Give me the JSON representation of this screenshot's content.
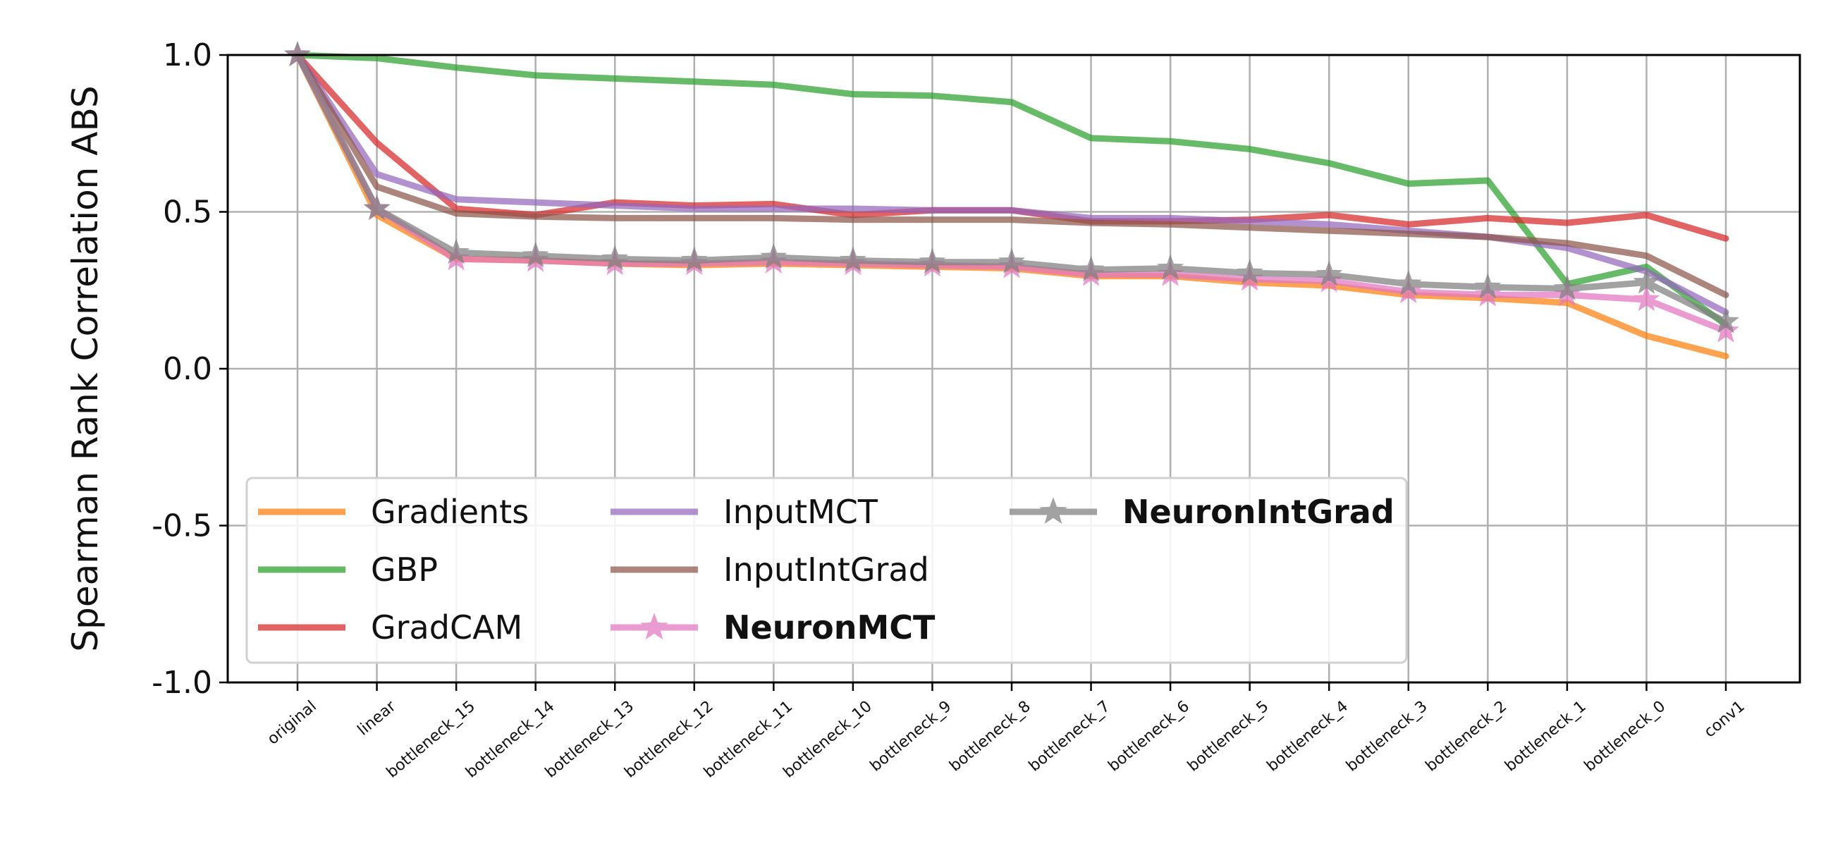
{
  "chart_data": {
    "type": "line",
    "title": "",
    "xlabel": "",
    "ylabel": "Spearman Rank Correlation ABS",
    "ylim": [
      -1.0,
      1.0
    ],
    "yticks": [
      "1.0",
      "0.5",
      "0.0",
      "-0.5",
      "-1.0"
    ],
    "grid": true,
    "legend_position": "lower-left",
    "legend_columns": 3,
    "categories": [
      "original",
      "linear",
      "bottleneck_15",
      "bottleneck_14",
      "bottleneck_13",
      "bottleneck_12",
      "bottleneck_11",
      "bottleneck_10",
      "bottleneck_9",
      "bottleneck_8",
      "bottleneck_7",
      "bottleneck_6",
      "bottleneck_5",
      "bottleneck_4",
      "bottleneck_3",
      "bottleneck_2",
      "bottleneck_1",
      "bottleneck_0",
      "conv1"
    ],
    "series": [
      {
        "name": "Gradients",
        "color": "#ff7f0e",
        "marker": "none",
        "bold": false,
        "values": [
          1.0,
          0.49,
          0.35,
          0.345,
          0.335,
          0.33,
          0.335,
          0.33,
          0.325,
          0.32,
          0.295,
          0.295,
          0.275,
          0.265,
          0.235,
          0.225,
          0.21,
          0.105,
          0.04
        ]
      },
      {
        "name": "GBP",
        "color": "#2ca02c",
        "marker": "none",
        "bold": false,
        "values": [
          1.0,
          0.99,
          0.96,
          0.935,
          0.925,
          0.915,
          0.905,
          0.875,
          0.87,
          0.85,
          0.735,
          0.725,
          0.7,
          0.655,
          0.59,
          0.6,
          0.27,
          0.325,
          0.14
        ]
      },
      {
        "name": "GradCAM",
        "color": "#d62728",
        "marker": "none",
        "bold": false,
        "values": [
          1.0,
          0.72,
          0.51,
          0.49,
          0.53,
          0.52,
          0.525,
          0.49,
          0.505,
          0.505,
          0.47,
          0.47,
          0.475,
          0.49,
          0.46,
          0.48,
          0.465,
          0.49,
          0.415
        ]
      },
      {
        "name": "InputMCT",
        "color": "#9467bd",
        "marker": "none",
        "bold": false,
        "values": [
          1.0,
          0.62,
          0.54,
          0.53,
          0.52,
          0.51,
          0.51,
          0.51,
          0.505,
          0.505,
          0.48,
          0.48,
          0.47,
          0.46,
          0.44,
          0.42,
          0.385,
          0.31,
          0.18
        ]
      },
      {
        "name": "InputIntGrad",
        "color": "#8c564b",
        "marker": "none",
        "bold": false,
        "values": [
          1.0,
          0.58,
          0.495,
          0.485,
          0.48,
          0.48,
          0.48,
          0.475,
          0.475,
          0.475,
          0.465,
          0.46,
          0.45,
          0.44,
          0.43,
          0.42,
          0.4,
          0.36,
          0.235
        ]
      },
      {
        "name": "NeuronMCT",
        "color": "#e377c2",
        "marker": "star",
        "bold": true,
        "values": [
          1.0,
          0.51,
          0.35,
          0.345,
          0.335,
          0.335,
          0.34,
          0.335,
          0.33,
          0.325,
          0.3,
          0.3,
          0.285,
          0.28,
          0.245,
          0.235,
          0.235,
          0.22,
          0.12
        ]
      },
      {
        "name": "NeuronIntGrad",
        "color": "#7f7f7f",
        "marker": "star",
        "bold": true,
        "values": [
          1.0,
          0.51,
          0.37,
          0.36,
          0.35,
          0.345,
          0.355,
          0.345,
          0.34,
          0.34,
          0.315,
          0.32,
          0.305,
          0.3,
          0.27,
          0.26,
          0.255,
          0.275,
          0.15
        ]
      }
    ]
  }
}
